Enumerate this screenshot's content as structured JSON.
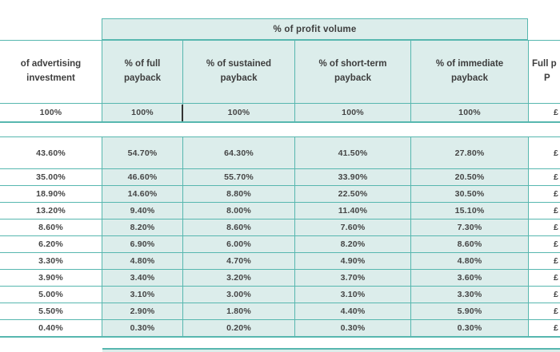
{
  "colors": {
    "border_teal": "#57b7af",
    "fill_light_teal": "#dcedeb",
    "text_dark": "#3d3d3d",
    "dark_divider": "#333333",
    "background": "#ffffff"
  },
  "chart_data": {
    "type": "table",
    "title": "% of profit volume",
    "columns": [
      "of advertising investment",
      "% of full payback",
      "% of sustained payback",
      "% of short-term payback",
      "% of immediate payback"
    ],
    "last_column_header": {
      "line1": "Full p",
      "line2": "P"
    },
    "baseline": [
      "100%",
      "100%",
      "100%",
      "100%",
      "100%",
      "£"
    ],
    "rows": [
      [
        "43.60%",
        "54.70%",
        "64.30%",
        "41.50%",
        "27.80%",
        "£"
      ],
      [
        "35.00%",
        "46.60%",
        "55.70%",
        "33.90%",
        "20.50%",
        "£"
      ],
      [
        "18.90%",
        "14.60%",
        "8.80%",
        "22.50%",
        "30.50%",
        "£"
      ],
      [
        "13.20%",
        "9.40%",
        "8.00%",
        "11.40%",
        "15.10%",
        "£"
      ],
      [
        "8.60%",
        "8.20%",
        "8.60%",
        "7.60%",
        "7.30%",
        "£"
      ],
      [
        "6.20%",
        "6.90%",
        "6.00%",
        "8.20%",
        "8.60%",
        "£"
      ],
      [
        "3.30%",
        "4.80%",
        "4.70%",
        "4.90%",
        "4.80%",
        "£"
      ],
      [
        "3.90%",
        "3.40%",
        "3.20%",
        "3.70%",
        "3.60%",
        "£"
      ],
      [
        "5.00%",
        "3.10%",
        "3.00%",
        "3.10%",
        "3.30%",
        "£"
      ],
      [
        "5.50%",
        "2.90%",
        "1.80%",
        "4.40%",
        "5.90%",
        "£"
      ],
      [
        "0.40%",
        "0.30%",
        "0.20%",
        "0.30%",
        "0.30%",
        "£"
      ]
    ],
    "layout_hints": {
      "spanner_covers_columns": [
        1,
        2,
        3,
        4
      ],
      "teal_filled_columns": [
        1,
        2,
        3,
        4
      ],
      "left_and_right_columns_cropped": true,
      "grid": "on"
    }
  }
}
